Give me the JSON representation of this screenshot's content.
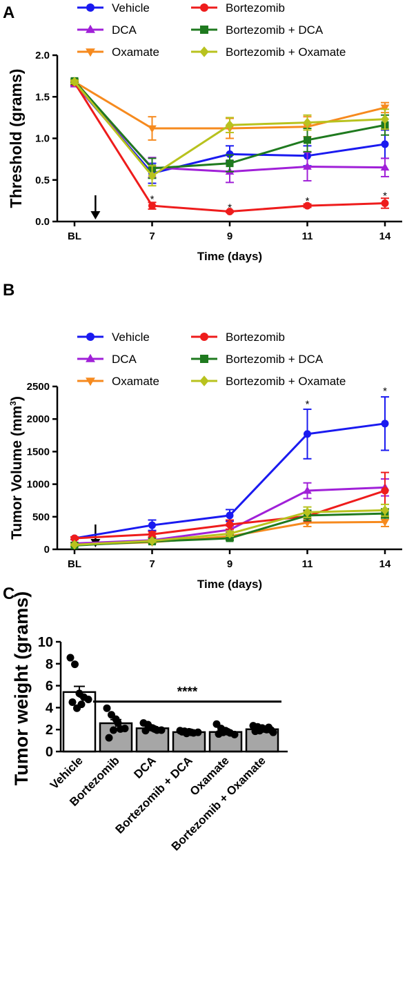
{
  "colors": {
    "Vehicle": "#1a1af0",
    "DCA": "#a020d8",
    "Oxamate": "#f68a1e",
    "Bortezomib": "#ee1c1c",
    "Bortezomib + DCA": "#1f7a1f",
    "Bortezomib + Oxamate": "#b8c21e"
  },
  "chart_data": [
    {
      "panel": "A",
      "type": "line",
      "xlabel": "Time (days)",
      "ylabel": "Threshold (grams)",
      "categories": [
        "BL",
        "7",
        "9",
        "11",
        "14"
      ],
      "ylim": [
        0,
        2.0
      ],
      "yticks": [
        "0.0",
        "0.5",
        "1.0",
        "1.5",
        "2.0"
      ],
      "arrow_after": "BL",
      "series": [
        {
          "name": "Vehicle",
          "marker": "circle",
          "values": [
            1.66,
            0.58,
            0.81,
            0.79,
            0.93
          ],
          "errors": [
            0.02,
            0.12,
            0.1,
            0.12,
            0.17
          ]
        },
        {
          "name": "DCA",
          "marker": "triangle-up",
          "values": [
            1.65,
            0.65,
            0.6,
            0.66,
            0.65
          ],
          "errors": [
            0.02,
            0.12,
            0.13,
            0.17,
            0.11
          ]
        },
        {
          "name": "Oxamate",
          "marker": "triangle-down",
          "values": [
            1.68,
            1.12,
            1.12,
            1.14,
            1.37
          ],
          "errors": [
            0.02,
            0.14,
            0.12,
            0.12,
            0.06
          ]
        },
        {
          "name": "Bortezomib",
          "marker": "circle",
          "values": [
            1.67,
            0.19,
            0.12,
            0.19,
            0.22
          ],
          "errors": [
            0.02,
            0.04,
            0.01,
            0.02,
            0.06
          ]
        },
        {
          "name": "Bortezomib + DCA",
          "marker": "square",
          "values": [
            1.69,
            0.64,
            0.7,
            0.98,
            1.16
          ],
          "errors": [
            0.02,
            0.12,
            0.1,
            0.14,
            0.12
          ]
        },
        {
          "name": "Bortezomib + Oxamate",
          "marker": "diamond",
          "values": [
            1.68,
            0.55,
            1.16,
            1.19,
            1.23
          ],
          "errors": [
            0.02,
            0.12,
            0.09,
            0.09,
            0.12
          ]
        }
      ],
      "annotations": [
        {
          "text": "*",
          "category": "7",
          "value": 0.27
        },
        {
          "text": "*",
          "category": "9",
          "value": 0.17
        },
        {
          "text": "*",
          "category": "11",
          "value": 0.25
        },
        {
          "text": "*",
          "category": "14",
          "value": 0.31
        }
      ]
    },
    {
      "panel": "B",
      "type": "line",
      "xlabel": "Time (days)",
      "ylabel": "Tumor Volume (mm",
      "ylabel_sup": "3",
      "ylabel_end": ")",
      "categories": [
        "BL",
        "7",
        "9",
        "11",
        "14"
      ],
      "ylim": [
        0,
        2500
      ],
      "yticks": [
        "0",
        "500",
        "1000",
        "1500",
        "2000",
        "2500"
      ],
      "arrow_after": "BL",
      "series": [
        {
          "name": "Vehicle",
          "marker": "circle",
          "values": [
            170,
            370,
            520,
            1770,
            1930
          ],
          "errors": [
            20,
            80,
            90,
            380,
            410
          ]
        },
        {
          "name": "DCA",
          "marker": "triangle-up",
          "values": [
            90,
            140,
            300,
            900,
            950
          ],
          "errors": [
            15,
            30,
            60,
            120,
            130
          ]
        },
        {
          "name": "Oxamate",
          "marker": "triangle-down",
          "values": [
            70,
            110,
            200,
            410,
            420
          ],
          "errors": [
            10,
            20,
            40,
            60,
            70
          ]
        },
        {
          "name": "Bortezomib",
          "marker": "circle",
          "values": [
            170,
            230,
            380,
            510,
            900
          ],
          "errors": [
            20,
            40,
            70,
            80,
            280
          ]
        },
        {
          "name": "Bortezomib + DCA",
          "marker": "square",
          "values": [
            60,
            120,
            170,
            520,
            550
          ],
          "errors": [
            10,
            20,
            30,
            80,
            70
          ]
        },
        {
          "name": "Bortezomib + Oxamate",
          "marker": "diamond",
          "values": [
            70,
            130,
            240,
            570,
            600
          ],
          "errors": [
            10,
            20,
            40,
            80,
            90
          ]
        }
      ],
      "annotations": [
        {
          "text": "*",
          "category": "11",
          "value": 2230
        },
        {
          "text": "*",
          "category": "14",
          "value": 2430
        }
      ]
    },
    {
      "panel": "C",
      "type": "bar",
      "ylabel": "Tumor weight (grams)",
      "ylim": [
        0,
        10
      ],
      "yticks": [
        "0",
        "2",
        "4",
        "6",
        "8",
        "10"
      ],
      "categories": [
        "Vehicle",
        "Bortezomib",
        "DCA",
        "Bortezomib + DCA",
        "Oxamate",
        "Bortezomib + Oxamate"
      ],
      "values": [
        5.42,
        2.58,
        2.12,
        1.77,
        1.78,
        2.03
      ],
      "errors": [
        0.52,
        0.33,
        0.14,
        0.05,
        0.12,
        0.08
      ],
      "fills": [
        "#ffffff",
        "#a6a6a6",
        "#a6a6a6",
        "#a6a6a6",
        "#a6a6a6",
        "#a6a6a6"
      ],
      "points": [
        [
          8.55,
          7.95,
          5.3,
          4.95,
          4.75,
          4.5,
          3.95,
          4.3
        ],
        [
          3.95,
          3.35,
          2.95,
          2.05,
          2.1,
          1.25,
          1.95,
          2.6
        ],
        [
          2.6,
          2.45,
          2.15,
          1.95,
          1.95,
          1.9,
          2.2,
          2.05
        ],
        [
          1.9,
          1.85,
          1.8,
          1.7,
          1.75,
          1.8,
          1.65,
          1.75
        ],
        [
          2.5,
          2.1,
          1.9,
          1.7,
          1.55,
          1.6,
          1.75,
          1.8
        ],
        [
          2.35,
          2.25,
          2.15,
          2.0,
          1.95,
          1.85,
          1.9,
          2.05,
          2.2,
          1.75
        ]
      ],
      "significance": {
        "text": "****",
        "from": "Bortezomib",
        "to": "Bortezomib + Oxamate",
        "value": 4.55
      }
    }
  ],
  "panels": {
    "A": {
      "letter": "A"
    },
    "B": {
      "letter": "B"
    },
    "C": {
      "letter": "C"
    }
  }
}
